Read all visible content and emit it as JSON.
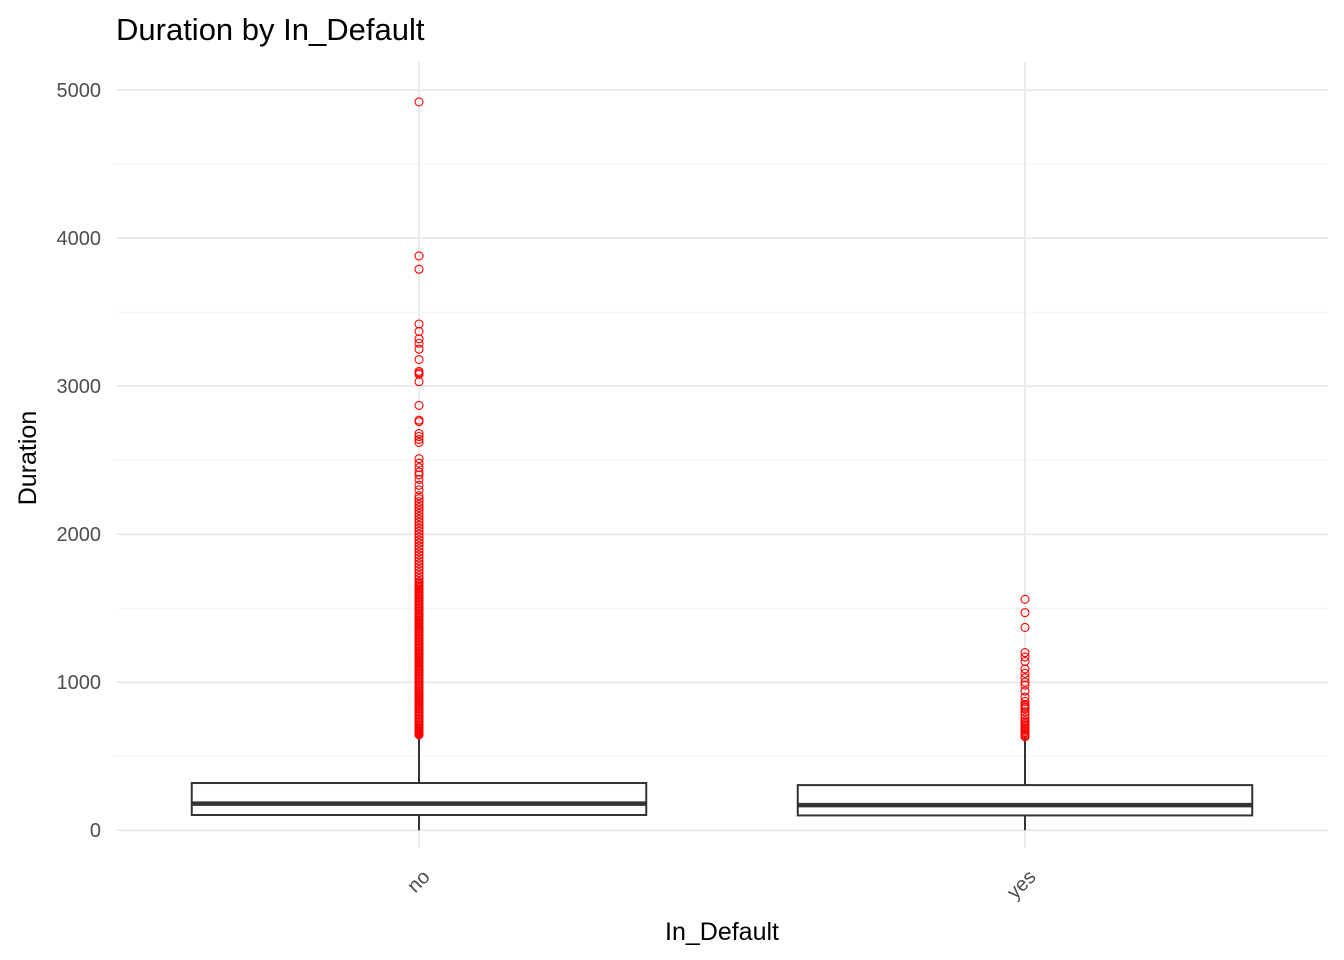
{
  "chart_data": {
    "type": "box",
    "title": "Duration by In_Default",
    "xlabel": "In_Default",
    "ylabel": "Duration",
    "categories": [
      "no",
      "yes"
    ],
    "ylim": [
      -120,
      5190
    ],
    "y_ticks": [
      0,
      1000,
      2000,
      3000,
      4000,
      5000
    ],
    "y_tick_labels": [
      "0",
      "1000",
      "2000",
      "3000",
      "4000",
      "5000"
    ],
    "x_tick_rotation_deg": -45,
    "grid": true,
    "outlier_color": "#ff0000",
    "box_color": "#333333",
    "series": [
      {
        "category": "no",
        "lower_whisker": 0,
        "q1": 103,
        "median": 180,
        "q3": 319,
        "upper_whisker": 643,
        "outliers": [
          645,
          650,
          655,
          660,
          665,
          670,
          675,
          680,
          685,
          690,
          700,
          710,
          720,
          730,
          740,
          750,
          760,
          770,
          780,
          790,
          800,
          810,
          820,
          830,
          840,
          850,
          860,
          870,
          880,
          890,
          900,
          910,
          920,
          930,
          940,
          950,
          960,
          970,
          980,
          990,
          1000,
          1010,
          1020,
          1030,
          1040,
          1050,
          1060,
          1070,
          1080,
          1090,
          1100,
          1110,
          1120,
          1130,
          1140,
          1150,
          1160,
          1170,
          1180,
          1190,
          1200,
          1210,
          1220,
          1230,
          1240,
          1250,
          1260,
          1270,
          1280,
          1290,
          1300,
          1310,
          1320,
          1330,
          1340,
          1350,
          1360,
          1370,
          1380,
          1390,
          1400,
          1410,
          1420,
          1430,
          1440,
          1450,
          1460,
          1470,
          1480,
          1490,
          1500,
          1510,
          1520,
          1530,
          1540,
          1550,
          1560,
          1570,
          1580,
          1590,
          1600,
          1610,
          1620,
          1630,
          1640,
          1650,
          1660,
          1670,
          1680,
          1700,
          1720,
          1740,
          1760,
          1780,
          1800,
          1820,
          1840,
          1860,
          1880,
          1900,
          1920,
          1940,
          1960,
          1980,
          2000,
          2020,
          2040,
          2060,
          2080,
          2100,
          2120,
          2140,
          2160,
          2180,
          2200,
          2220,
          2240,
          2260,
          2300,
          2330,
          2370,
          2400,
          2420,
          2450,
          2480,
          2510,
          2620,
          2640,
          2660,
          2680,
          2760,
          2770,
          2870,
          3030,
          3080,
          3090,
          3100,
          3180,
          3250,
          3290,
          3320,
          3370,
          3420,
          3790,
          3880,
          4920
        ]
      },
      {
        "category": "yes",
        "lower_whisker": 0,
        "q1": 100,
        "median": 170,
        "q3": 305,
        "upper_whisker": 630,
        "outliers": [
          632,
          640,
          650,
          660,
          670,
          680,
          690,
          700,
          710,
          720,
          730,
          740,
          760,
          780,
          800,
          820,
          830,
          840,
          850,
          870,
          900,
          940,
          980,
          1000,
          1030,
          1060,
          1090,
          1140,
          1170,
          1200,
          1370,
          1470,
          1560
        ]
      }
    ]
  }
}
